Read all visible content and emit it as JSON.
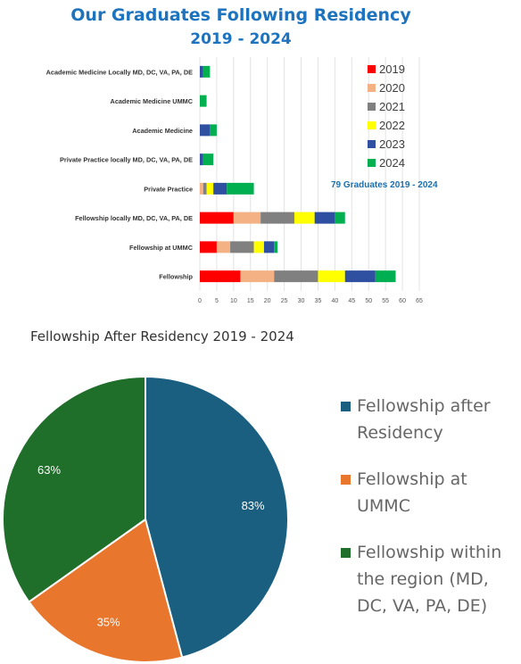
{
  "chart_data": [
    {
      "type": "bar",
      "orientation": "horizontal",
      "stacked": true,
      "title": "Our Graduates Following Residency",
      "subtitle": "2019 - 2024",
      "categories": [
        "Academic Medicine Locally  MD, DC, VA, PA, DE",
        "Academic Medicine UMMC",
        "Academic Medicine",
        "Private Practice locally MD, DC, VA, PA, DE",
        "Private Practice",
        "Fellowship locally MD, DC, VA, PA, DE",
        "Fellowship at UMMC",
        "Fellowship"
      ],
      "series": [
        {
          "name": "2019",
          "color": "#ff0000",
          "values": [
            0,
            0,
            0,
            0,
            0,
            10,
            5,
            12
          ]
        },
        {
          "name": "2020",
          "color": "#f4b183",
          "values": [
            0,
            0,
            0,
            0,
            1,
            8,
            4,
            10
          ]
        },
        {
          "name": "2021",
          "color": "#808080",
          "values": [
            0,
            0,
            0,
            0,
            1,
            10,
            7,
            13
          ]
        },
        {
          "name": "2022",
          "color": "#ffff00",
          "values": [
            0,
            0,
            0,
            0,
            2,
            6,
            3,
            8
          ]
        },
        {
          "name": "2023",
          "color": "#2f4fa0",
          "values": [
            1,
            0,
            3,
            1,
            4,
            6,
            3,
            9
          ]
        },
        {
          "name": "2024",
          "color": "#00b050",
          "values": [
            2,
            2,
            2,
            3,
            8,
            3,
            1,
            6
          ]
        }
      ],
      "xlim": [
        0,
        65
      ],
      "xticks": [
        0,
        5,
        10,
        15,
        20,
        25,
        30,
        35,
        40,
        45,
        50,
        55,
        60,
        65
      ],
      "grid": true,
      "legend_position": "top-right",
      "annotation": "79 Graduates 2019 - 2024",
      "annotation_color": "#1a6fae"
    },
    {
      "type": "pie",
      "title": "Fellowship After Residency 2019  - 2024",
      "slices": [
        {
          "label": "Fellowship after Residency",
          "value": 83,
          "display": "83%",
          "color": "#1a5e80"
        },
        {
          "label": "Fellowship at UMMC",
          "value": 35,
          "display": "35%",
          "color": "#e8762d"
        },
        {
          "label": "Fellowship within the region (MD, DC, VA, PA, DE)",
          "value": 63,
          "display": "63%",
          "color": "#1f6e2a"
        }
      ],
      "legend_position": "right"
    }
  ]
}
